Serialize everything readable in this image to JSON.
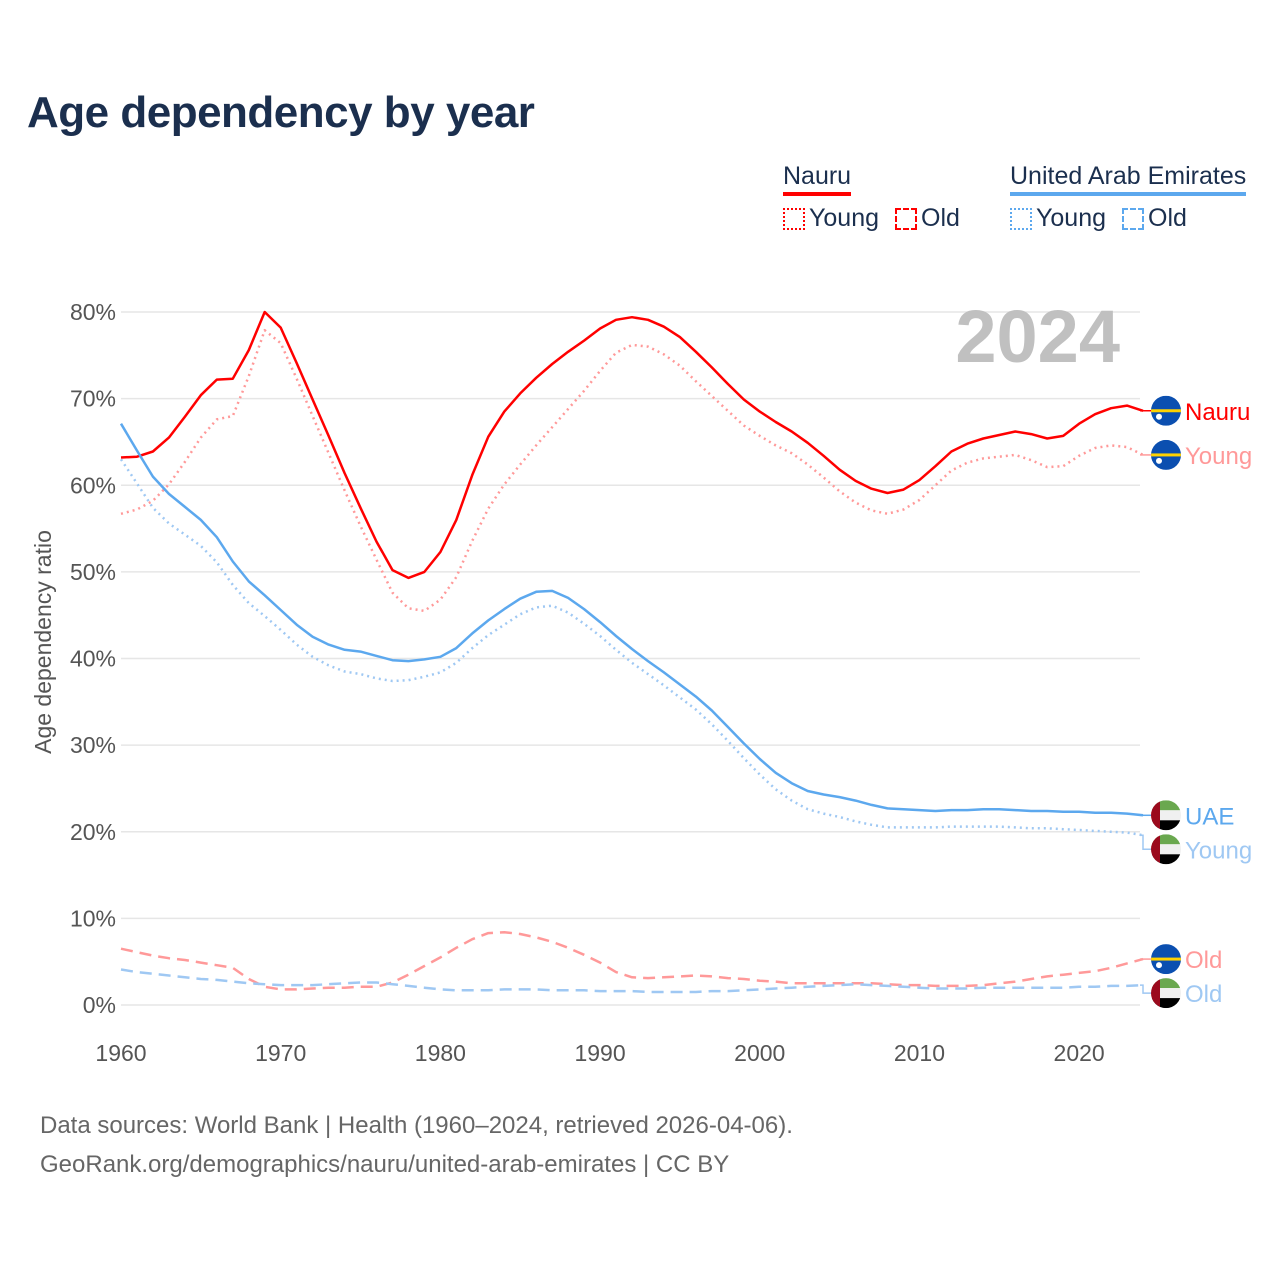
{
  "title": "Age dependency by year",
  "legend": {
    "groups": [
      {
        "name": "Nauru",
        "color": "#ff0000",
        "items": [
          "Young",
          "Old"
        ]
      },
      {
        "name": "United Arab Emirates",
        "color": "#5ca8ee",
        "items": [
          "Young",
          "Old"
        ]
      }
    ]
  },
  "footer": {
    "line1": "Data sources: World Bank | Health (1960–2024, retrieved 2026-04-06).",
    "line2": "GeoRank.org/demographics/nauru/united-arab-emirates | CC BY"
  },
  "chart_data": {
    "type": "line",
    "title": "Age dependency by year",
    "year_watermark": "2024",
    "xlabel": "",
    "ylabel": "Age dependency ratio",
    "xlim": [
      1960,
      2024
    ],
    "ylim": [
      0,
      80
    ],
    "x_ticks": [
      "1960",
      "1970",
      "1980",
      "1990",
      "2000",
      "2010",
      "2020"
    ],
    "y_ticks": [
      "0%",
      "10%",
      "20%",
      "30%",
      "40%",
      "50%",
      "60%",
      "70%",
      "80%"
    ],
    "grid": true,
    "x_start": 1960,
    "series": [
      {
        "name": "Nauru",
        "label": "Nauru",
        "country": "nauru",
        "style": "solid",
        "color": "#ff0000",
        "values": [
          63.2,
          63.3,
          63.9,
          65.5,
          67.9,
          70.4,
          72.2,
          72.3,
          75.6,
          80.0,
          78.2,
          74.1,
          69.9,
          65.7,
          61.4,
          57.4,
          53.5,
          50.2,
          49.3,
          50.0,
          52.3,
          56.0,
          61.2,
          65.6,
          68.5,
          70.6,
          72.4,
          74.0,
          75.4,
          76.7,
          78.1,
          79.1,
          79.4,
          79.1,
          78.3,
          77.1,
          75.4,
          73.6,
          71.7,
          69.9,
          68.5,
          67.3,
          66.2,
          64.9,
          63.4,
          61.8,
          60.5,
          59.6,
          59.1,
          59.5,
          60.6,
          62.2,
          63.9,
          64.8,
          65.4,
          65.8,
          66.2,
          65.9,
          65.4,
          65.7,
          67.1,
          68.2,
          68.9,
          69.2,
          68.6
        ]
      },
      {
        "name": "Nauru Young",
        "label": "Young",
        "country": "nauru",
        "style": "dotted",
        "color": "#ff9999",
        "values": [
          56.7,
          57.2,
          58.2,
          60.1,
          62.7,
          65.5,
          67.6,
          68.0,
          72.6,
          77.9,
          76.4,
          72.3,
          68.0,
          63.7,
          59.4,
          55.3,
          51.4,
          47.6,
          45.8,
          45.5,
          46.8,
          49.4,
          53.6,
          57.3,
          60.1,
          62.4,
          64.6,
          66.7,
          68.8,
          70.9,
          73.2,
          75.3,
          76.2,
          76.0,
          75.1,
          73.8,
          72.0,
          70.3,
          68.6,
          66.9,
          65.7,
          64.6,
          63.7,
          62.4,
          60.9,
          59.3,
          58.0,
          57.1,
          56.7,
          57.2,
          58.3,
          60.0,
          61.7,
          62.6,
          63.1,
          63.3,
          63.5,
          62.9,
          62.1,
          62.2,
          63.4,
          64.3,
          64.6,
          64.4,
          63.5
        ]
      },
      {
        "name": "UAE",
        "label": "UAE",
        "country": "uae",
        "style": "solid",
        "color": "#5ca8ee",
        "values": [
          67.1,
          64.0,
          61.0,
          59.0,
          57.5,
          56.0,
          54.0,
          51.2,
          48.9,
          47.3,
          45.6,
          43.9,
          42.5,
          41.6,
          41.0,
          40.8,
          40.3,
          39.8,
          39.7,
          39.9,
          40.2,
          41.2,
          42.9,
          44.4,
          45.7,
          46.9,
          47.7,
          47.8,
          47.0,
          45.7,
          44.2,
          42.6,
          41.1,
          39.7,
          38.4,
          37.0,
          35.6,
          34.0,
          32.1,
          30.2,
          28.4,
          26.8,
          25.6,
          24.7,
          24.3,
          24.0,
          23.6,
          23.1,
          22.7,
          22.6,
          22.5,
          22.4,
          22.5,
          22.5,
          22.6,
          22.6,
          22.5,
          22.4,
          22.4,
          22.3,
          22.3,
          22.2,
          22.2,
          22.1,
          21.9
        ]
      },
      {
        "name": "UAE Young",
        "label": "Young",
        "country": "uae",
        "style": "dotted",
        "color": "#9fc8f3",
        "values": [
          63.0,
          60.2,
          57.4,
          55.6,
          54.3,
          53.0,
          51.1,
          48.5,
          46.4,
          44.9,
          43.3,
          41.6,
          40.2,
          39.2,
          38.5,
          38.2,
          37.7,
          37.4,
          37.5,
          37.9,
          38.4,
          39.5,
          41.2,
          42.7,
          43.9,
          45.1,
          45.9,
          46.1,
          45.3,
          44.0,
          42.6,
          41.0,
          39.5,
          38.2,
          36.9,
          35.5,
          34.1,
          32.4,
          30.5,
          28.5,
          26.6,
          24.9,
          23.6,
          22.6,
          22.1,
          21.7,
          21.2,
          20.8,
          20.5,
          20.5,
          20.5,
          20.5,
          20.6,
          20.6,
          20.6,
          20.6,
          20.5,
          20.4,
          20.4,
          20.3,
          20.2,
          20.1,
          20.0,
          19.9,
          19.6
        ]
      },
      {
        "name": "Nauru Old",
        "label": "Old",
        "country": "nauru",
        "style": "dashed",
        "color": "#ff9999",
        "values": [
          6.5,
          6.1,
          5.7,
          5.4,
          5.2,
          4.9,
          4.6,
          4.3,
          3.0,
          2.1,
          1.8,
          1.8,
          1.9,
          2.0,
          2.0,
          2.1,
          2.1,
          2.6,
          3.5,
          4.5,
          5.5,
          6.6,
          7.6,
          8.3,
          8.4,
          8.2,
          7.8,
          7.3,
          6.6,
          5.8,
          4.9,
          3.8,
          3.2,
          3.1,
          3.2,
          3.3,
          3.4,
          3.3,
          3.1,
          3.0,
          2.8,
          2.7,
          2.5,
          2.5,
          2.5,
          2.5,
          2.5,
          2.5,
          2.4,
          2.3,
          2.3,
          2.2,
          2.2,
          2.2,
          2.3,
          2.5,
          2.7,
          3.0,
          3.3,
          3.5,
          3.7,
          3.9,
          4.3,
          4.8,
          5.3
        ]
      },
      {
        "name": "UAE Old",
        "label": "Old",
        "country": "uae",
        "style": "dashed",
        "color": "#9fc8f3",
        "values": [
          4.1,
          3.8,
          3.6,
          3.4,
          3.2,
          3.0,
          2.9,
          2.7,
          2.5,
          2.4,
          2.3,
          2.3,
          2.3,
          2.4,
          2.5,
          2.6,
          2.6,
          2.4,
          2.2,
          2.0,
          1.8,
          1.7,
          1.7,
          1.7,
          1.8,
          1.8,
          1.8,
          1.7,
          1.7,
          1.7,
          1.6,
          1.6,
          1.6,
          1.5,
          1.5,
          1.5,
          1.5,
          1.6,
          1.6,
          1.7,
          1.8,
          1.9,
          2.0,
          2.1,
          2.2,
          2.3,
          2.4,
          2.3,
          2.2,
          2.1,
          2.0,
          1.9,
          1.9,
          1.9,
          2.0,
          2.0,
          2.0,
          2.0,
          2.0,
          2.0,
          2.1,
          2.1,
          2.2,
          2.2,
          2.3
        ]
      }
    ]
  }
}
